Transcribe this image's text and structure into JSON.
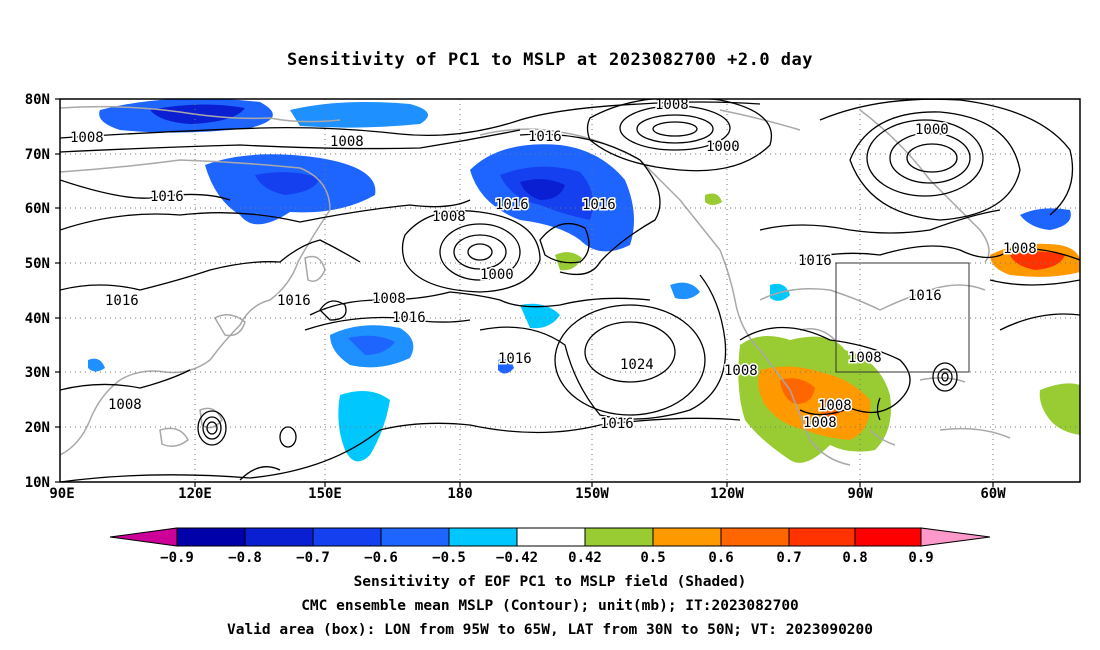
{
  "title": "Sensitivity of PC1 to MSLP at 2023082700 +2.0 day",
  "lat_labels": [
    "80N",
    "70N",
    "60N",
    "50N",
    "40N",
    "30N",
    "20N",
    "10N"
  ],
  "lon_labels": [
    "90E",
    "120E",
    "150E",
    "180",
    "150W",
    "120W",
    "90W",
    "60W"
  ],
  "contour_labels": [
    "1008",
    "1008",
    "1008",
    "1016",
    "1000",
    "1000",
    "1016",
    "1008",
    "1016",
    "1016",
    "1000",
    "1008",
    "1016",
    "1016",
    "1016",
    "1008",
    "1016",
    "1016",
    "1024",
    "1008",
    "1008",
    "1008",
    "1016",
    "1008",
    "1008",
    "1016"
  ],
  "colorbar": {
    "labels": [
      "−0.9",
      "−0.8",
      "−0.7",
      "−0.6",
      "−0.5",
      "−0.42",
      "0.42",
      "0.5",
      "0.6",
      "0.7",
      "0.8",
      "0.9"
    ],
    "colors": [
      "#cc0099",
      "#0000aa",
      "#0a1ed2",
      "#1440f0",
      "#1e64ff",
      "#1e90ff",
      "#00c8ff",
      "#ffffff",
      "#99cc33",
      "#ff9900",
      "#ff6600",
      "#ff3300",
      "#ff0000",
      "#ff99cc"
    ]
  },
  "captions": [
    "Sensitivity of EOF PC1 to MSLP field (Shaded)",
    "CMC ensemble mean MSLP (Contour); unit(mb); IT:2023082700",
    "Valid area (box): LON from 95W to 65W, LAT from 30N to 50N; VT: 2023090200"
  ],
  "valid_box": {
    "lon_west": -95,
    "lon_east": -65,
    "lat_south": 30,
    "lat_north": 50
  },
  "map_extent": {
    "lon_min": 90,
    "lon_max": 310,
    "lat_min": 10,
    "lat_max": 80
  }
}
